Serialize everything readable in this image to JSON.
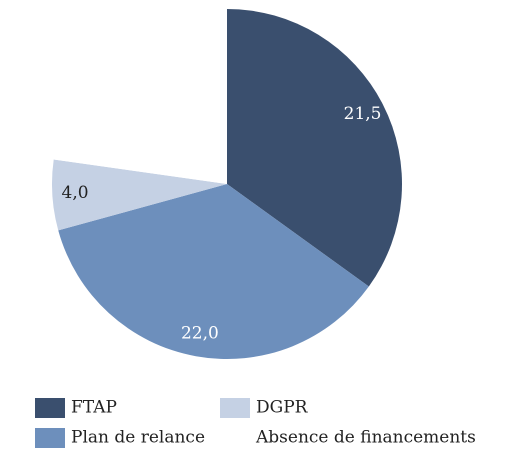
{
  "chart_data": {
    "type": "pie",
    "slices": [
      {
        "name": "FTAP",
        "value": 21.5,
        "label": "21,5",
        "color": "#3a4f6e",
        "label_color": "#ffffff"
      },
      {
        "name": "Plan de relance",
        "value": 22.0,
        "label": "22,0",
        "color": "#6d8fbc",
        "label_color": "#ffffff"
      },
      {
        "name": "DGPR",
        "value": 4.0,
        "label": "4,0",
        "color": "#c5d1e4",
        "label_color": "#222222"
      },
      {
        "name": "Absence de financements",
        "value": 14.0,
        "label": "",
        "color": "#ffffff",
        "label_color": "#222222"
      }
    ],
    "legend": [
      {
        "name": "FTAP",
        "color": "#3a4f6e"
      },
      {
        "name": "DGPR",
        "color": "#c5d1e4"
      },
      {
        "name": "Plan de relance",
        "color": "#6d8fbc"
      },
      {
        "name": "Absence de financements",
        "color": "#ffffff"
      }
    ],
    "legend_position": "bottom",
    "start_angle": "12 o'clock, clockwise"
  }
}
